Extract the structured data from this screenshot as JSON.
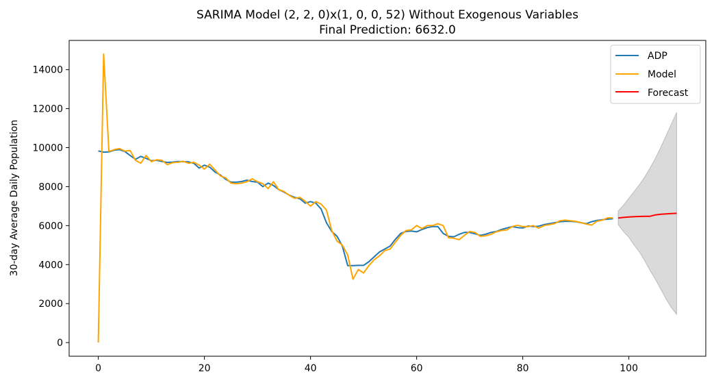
{
  "chart_data": {
    "type": "line",
    "title": "SARIMA Model (2, 2, 0)x(1, 0, 0, 52) Without Exogenous Variables",
    "subtitle": "Final Prediction: 6632.0",
    "xlabel": "",
    "ylabel": "30-day Average Daily Population",
    "xlim": [
      -5.5,
      114.5
    ],
    "ylim": [
      -700,
      15500
    ],
    "xticks": [
      0,
      20,
      40,
      60,
      80,
      100
    ],
    "yticks": [
      0,
      2000,
      4000,
      6000,
      8000,
      10000,
      12000,
      14000
    ],
    "legend_position": "top-right",
    "grid": false,
    "series": [
      {
        "name": "ADP",
        "color": "#1f77b4",
        "x": [
          0,
          1,
          2,
          3,
          4,
          5,
          6,
          7,
          8,
          9,
          10,
          11,
          12,
          13,
          14,
          15,
          16,
          17,
          18,
          19,
          20,
          21,
          22,
          23,
          24,
          25,
          26,
          27,
          28,
          29,
          30,
          31,
          32,
          33,
          34,
          35,
          36,
          37,
          38,
          39,
          40,
          41,
          42,
          43,
          44,
          45,
          46,
          47,
          48,
          49,
          50,
          51,
          52,
          53,
          54,
          55,
          56,
          57,
          58,
          59,
          60,
          61,
          62,
          63,
          64,
          65,
          66,
          67,
          68,
          69,
          70,
          71,
          72,
          73,
          74,
          75,
          76,
          77,
          78,
          79,
          80,
          81,
          82,
          83,
          84,
          85,
          86,
          87,
          88,
          89,
          90,
          91,
          92,
          93,
          94,
          95,
          96,
          97
        ],
        "y": [
          9830,
          9770,
          9780,
          9870,
          9900,
          9800,
          9600,
          9400,
          9550,
          9450,
          9330,
          9350,
          9290,
          9240,
          9260,
          9290,
          9280,
          9270,
          9200,
          8950,
          9100,
          9000,
          8750,
          8600,
          8380,
          8230,
          8230,
          8260,
          8330,
          8260,
          8230,
          8000,
          8180,
          8060,
          7850,
          7720,
          7560,
          7450,
          7380,
          7150,
          7230,
          7150,
          6850,
          6150,
          5700,
          5450,
          4950,
          3950,
          3950,
          3960,
          3960,
          4150,
          4400,
          4650,
          4800,
          4950,
          5300,
          5600,
          5700,
          5720,
          5680,
          5800,
          5900,
          5950,
          5950,
          5600,
          5450,
          5430,
          5550,
          5650,
          5650,
          5580,
          5500,
          5560,
          5650,
          5700,
          5800,
          5880,
          5950,
          5900,
          5880,
          5980,
          5950,
          5970,
          6050,
          6100,
          6150,
          6200,
          6220,
          6220,
          6200,
          6150,
          6100,
          6200,
          6270,
          6300,
          6330,
          6350
        ]
      },
      {
        "name": "Model",
        "color": "#ffa500",
        "x": [
          0,
          1,
          2,
          3,
          4,
          5,
          6,
          7,
          8,
          9,
          10,
          11,
          12,
          13,
          14,
          15,
          16,
          17,
          18,
          19,
          20,
          21,
          22,
          23,
          24,
          25,
          26,
          27,
          28,
          29,
          30,
          31,
          32,
          33,
          34,
          35,
          36,
          37,
          38,
          39,
          40,
          41,
          42,
          43,
          44,
          45,
          46,
          47,
          48,
          49,
          50,
          51,
          52,
          53,
          54,
          55,
          56,
          57,
          58,
          59,
          60,
          61,
          62,
          63,
          64,
          65,
          66,
          67,
          68,
          69,
          70,
          71,
          72,
          73,
          74,
          75,
          76,
          77,
          78,
          79,
          80,
          81,
          82,
          83,
          84,
          85,
          86,
          87,
          88,
          89,
          90,
          91,
          92,
          93,
          94,
          95,
          96,
          97
        ],
        "y": [
          0,
          14800,
          9800,
          9900,
          9950,
          9820,
          9850,
          9350,
          9200,
          9600,
          9280,
          9380,
          9350,
          9130,
          9230,
          9250,
          9300,
          9200,
          9250,
          9100,
          8900,
          9150,
          8850,
          8550,
          8450,
          8180,
          8150,
          8180,
          8250,
          8400,
          8250,
          8150,
          7900,
          8250,
          7850,
          7750,
          7550,
          7400,
          7450,
          7250,
          7000,
          7230,
          7100,
          6800,
          5750,
          5200,
          5000,
          4500,
          3250,
          3750,
          3570,
          3950,
          4250,
          4450,
          4720,
          4800,
          5150,
          5500,
          5750,
          5780,
          6000,
          5850,
          6000,
          6000,
          6100,
          6000,
          5380,
          5350,
          5280,
          5500,
          5700,
          5650,
          5450,
          5480,
          5550,
          5680,
          5750,
          5780,
          5950,
          6020,
          5950,
          5950,
          6000,
          5870,
          6000,
          6050,
          6100,
          6250,
          6280,
          6250,
          6220,
          6150,
          6080,
          6030,
          6230,
          6280,
          6400,
          6390
        ]
      },
      {
        "name": "Forecast",
        "color": "#ff0000",
        "x": [
          98,
          99,
          100,
          101,
          102,
          103,
          104,
          105,
          106,
          107,
          108,
          109
        ],
        "y": [
          6390,
          6420,
          6440,
          6460,
          6470,
          6480,
          6480,
          6550,
          6580,
          6600,
          6620,
          6632
        ]
      }
    ],
    "confidence_band": {
      "color": "#d3d3d3",
      "x": [
        98,
        99,
        100,
        101,
        102,
        103,
        104,
        105,
        106,
        107,
        108,
        109
      ],
      "lower": [
        6050,
        5700,
        5400,
        5000,
        4650,
        4200,
        3700,
        3250,
        2750,
        2250,
        1800,
        1450
      ],
      "upper": [
        6750,
        7050,
        7400,
        7750,
        8100,
        8500,
        8950,
        9450,
        10000,
        10600,
        11200,
        11800
      ]
    }
  }
}
